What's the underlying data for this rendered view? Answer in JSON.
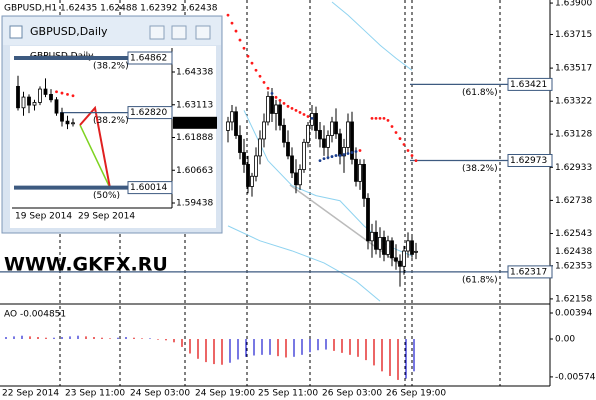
{
  "chart_data": [
    {
      "type": "candlestick",
      "title": "GBPUSD,H1  1.62435 1.62488 1.62392 1.62438",
      "ylim": [
        1.62128,
        1.63918
      ],
      "yticks": [
        {
          "value": 1.639,
          "label": "1.63900"
        },
        1.63715,
        1.63517,
        1.63322,
        1.63128,
        1.62933,
        1.62738,
        1.62543,
        1.62353,
        1.62158
      ],
      "x_labels": [
        "22 Sep 2014",
        "23 Sep 11:00",
        "24 Sep 03:00",
        "24 Sep 19:00",
        "25 Sep 11:00",
        "26 Sep 03:00",
        "26 Sep 19:00"
      ],
      "ohlc": [
        [
          1.6315,
          1.6323,
          1.6308,
          1.632
        ],
        [
          1.632,
          1.633,
          1.6315,
          1.6326
        ],
        [
          1.6326,
          1.6329,
          1.631,
          1.6312
        ],
        [
          1.6312,
          1.6318,
          1.6298,
          1.6302
        ],
        [
          1.6302,
          1.631,
          1.629,
          1.6295
        ],
        [
          1.6295,
          1.63,
          1.6278,
          1.6282
        ],
        [
          1.6282,
          1.629,
          1.6276,
          1.6288
        ],
        [
          1.6288,
          1.6305,
          1.6285,
          1.63
        ],
        [
          1.63,
          1.6315,
          1.6295,
          1.631
        ],
        [
          1.631,
          1.6325,
          1.6305,
          1.632
        ],
        [
          1.632,
          1.6338,
          1.6318,
          1.6335
        ],
        [
          1.6335,
          1.634,
          1.632,
          1.6325
        ],
        [
          1.6325,
          1.6333,
          1.6315,
          1.633
        ],
        [
          1.633,
          1.6332,
          1.6315,
          1.6318
        ],
        [
          1.6318,
          1.6322,
          1.6305,
          1.6308
        ],
        [
          1.6308,
          1.6315,
          1.6298,
          1.63
        ],
        [
          1.63,
          1.6305,
          1.6287,
          1.629
        ],
        [
          1.629,
          1.6298,
          1.6278,
          1.6283
        ],
        [
          1.6283,
          1.6295,
          1.628,
          1.6292
        ],
        [
          1.6292,
          1.631,
          1.629,
          1.6308
        ],
        [
          1.6308,
          1.632,
          1.6305,
          1.6318
        ],
        [
          1.6318,
          1.633,
          1.6315,
          1.6325
        ],
        [
          1.6325,
          1.6329,
          1.631,
          1.6315
        ],
        [
          1.6315,
          1.632,
          1.6305,
          1.631
        ],
        [
          1.631,
          1.6318,
          1.63,
          1.6305
        ],
        [
          1.6305,
          1.6315,
          1.6298,
          1.6312
        ],
        [
          1.6312,
          1.6323,
          1.6308,
          1.632
        ],
        [
          1.632,
          1.6328,
          1.631,
          1.6313
        ],
        [
          1.6313,
          1.6316,
          1.6295,
          1.63
        ],
        [
          1.63,
          1.631,
          1.629,
          1.6305
        ],
        [
          1.6305,
          1.6325,
          1.6302,
          1.632
        ],
        [
          1.632,
          1.6326,
          1.6295,
          1.6298
        ],
        [
          1.6298,
          1.6305,
          1.6282,
          1.6285
        ],
        [
          1.6285,
          1.6298,
          1.628,
          1.6295
        ],
        [
          1.6295,
          1.6298,
          1.627,
          1.6275
        ],
        [
          1.6275,
          1.6278,
          1.6245,
          1.625
        ],
        [
          1.625,
          1.626,
          1.624,
          1.6255
        ],
        [
          1.6255,
          1.6262,
          1.6242,
          1.6245
        ],
        [
          1.6245,
          1.6258,
          1.624,
          1.6252
        ],
        [
          1.6252,
          1.6256,
          1.6238,
          1.6242
        ],
        [
          1.6242,
          1.6253,
          1.624,
          1.625
        ],
        [
          1.625,
          1.6252,
          1.6235,
          1.624
        ],
        [
          1.624,
          1.6248,
          1.6233,
          1.6238
        ],
        [
          1.6238,
          1.6242,
          1.6223,
          1.6235
        ],
        [
          1.6235,
          1.6247,
          1.623,
          1.6244
        ],
        [
          1.6244,
          1.6255,
          1.624,
          1.625
        ],
        [
          1.625,
          1.6253,
          1.624,
          1.6242
        ],
        [
          1.62435,
          1.62488,
          1.62392,
          1.62438
        ]
      ],
      "sar": [
        1.63829,
        1.63782,
        1.63735,
        1.63682,
        1.63634,
        1.63587,
        1.63546,
        1.63504,
        1.63469,
        1.63433,
        1.63398,
        1.63368,
        1.63345,
        1.63327,
        1.63309,
        1.63292,
        1.6328,
        1.63268,
        1.63256,
        1.63244,
        1.63232,
        1.63221,
        null,
        1.62972,
        1.62984,
        1.6299,
        1.62996,
        1.63002,
        1.63002,
        1.63008,
        1.63014,
        1.6302,
        1.63026,
        1.63032,
        null,
        null,
        1.63221,
        1.63221,
        1.63221,
        1.63221,
        1.63209,
        1.63173,
        1.63138,
        1.63102,
        1.63067,
        1.63032,
        1.63002,
        1.62972
      ],
      "sar_colors": {
        "above": "#ff1a1a",
        "below": "#1c3f8f"
      },
      "bands": [
        {
          "color": "#8fd3f0",
          "x": [
            26,
            30,
            34,
            38,
            42,
            46
          ],
          "values": [
            1.63906,
            1.63829,
            1.63741,
            1.63652,
            1.63575,
            1.63504
          ]
        },
        {
          "color": "#8fd3f0",
          "x": [
            4,
            10,
            16,
            22,
            28,
            34,
            40,
            46
          ],
          "values": [
            1.63268,
            1.62972,
            1.62825,
            1.62766,
            1.62736,
            1.62588,
            1.6247,
            1.62411
          ]
        },
        {
          "color": "#8fd3f0",
          "x": [
            0,
            8,
            16,
            24,
            32,
            38
          ],
          "values": [
            1.62588,
            1.625,
            1.62441,
            1.6237,
            1.62263,
            1.62145
          ]
        }
      ],
      "fib_levels": [
        {
          "price": 1.63421,
          "level": "(61.8%)"
        },
        {
          "price": 1.62973,
          "level": "(38.2%)"
        },
        {
          "price": 1.62317,
          "level": "(61.8%)"
        }
      ],
      "last_price": 1.62438,
      "watermark": "WWW.GKFX.RU"
    },
    {
      "type": "candlestick",
      "title": "GBPUSD,Daily",
      "plot_label": "GBPUSD,Daily",
      "ylim": [
        1.59251,
        1.65236
      ],
      "yticks": [
        1.64338,
        1.63113,
        1.61888,
        1.60663,
        1.59438
      ],
      "x_labels": [
        "19 Sep 2014",
        "29 Sep 2014"
      ],
      "ohlc": [
        [
          1.638,
          1.642,
          1.629,
          1.63
        ],
        [
          1.63,
          1.636,
          1.627,
          1.634
        ],
        [
          1.634,
          1.635,
          1.628,
          1.631
        ],
        [
          1.631,
          1.633,
          1.629,
          1.632
        ],
        [
          1.632,
          1.638,
          1.631,
          1.637
        ],
        [
          1.637,
          1.641,
          1.634,
          1.635
        ],
        [
          1.635,
          1.637,
          1.632,
          1.633
        ],
        [
          1.633,
          1.634,
          1.627,
          1.628
        ],
        [
          1.628,
          1.63,
          1.623,
          1.625
        ],
        [
          1.625,
          1.627,
          1.622,
          1.624
        ],
        [
          1.62435,
          1.626,
          1.623,
          1.62438
        ]
      ],
      "sar": [
        null,
        null,
        null,
        null,
        null,
        null,
        null,
        1.636,
        1.6355,
        1.635,
        1.6345
      ],
      "sar_colors": {
        "above": "#ff1a1a",
        "below": "#1c3f8f"
      },
      "fib_levels": [
        {
          "price": 1.64862,
          "level": "(38.2%)"
        },
        {
          "price": {
            "value": 1.6282,
            "label": "1.62820"
          },
          "level": "(38.2%)"
        },
        {
          "price": 1.60014,
          "level": "(50%)"
        }
      ],
      "last_price": 1.62438
    },
    {
      "type": "bar",
      "title": "AO -0.004851",
      "ylim": [
        -0.00712,
        0.005
      ],
      "yticks": [
        0.00394,
        {
          "value": 0,
          "label": "0.00"
        },
        -0.00574
      ],
      "colors": {
        "up": "#1f1fd0",
        "down": "#e00000"
      },
      "values": [
        0.0003,
        0.0004,
        0.0005,
        0.0004,
        0.0003,
        0.0002,
        0.0002,
        0.0003,
        0.0004,
        0.0005,
        0.0004,
        0.0003,
        0.0002,
        0.0001,
        0.0002,
        0.0003,
        0.0002,
        0.0001,
        0.0001,
        -0.0001,
        -0.0002,
        -0.0005,
        -0.0012,
        -0.0022,
        -0.003,
        -0.0035,
        -0.0038,
        -0.0039,
        -0.0036,
        -0.0031,
        -0.0027,
        -0.0025,
        -0.0024,
        -0.0024,
        -0.0026,
        -0.0028,
        -0.0027,
        -0.0024,
        -0.002,
        -0.0017,
        -0.0016,
        -0.0018,
        -0.0021,
        -0.0024,
        -0.0027,
        -0.0032,
        -0.004,
        -0.0049,
        -0.0056,
        -0.0062,
        -0.006,
        -0.0049
      ]
    }
  ]
}
